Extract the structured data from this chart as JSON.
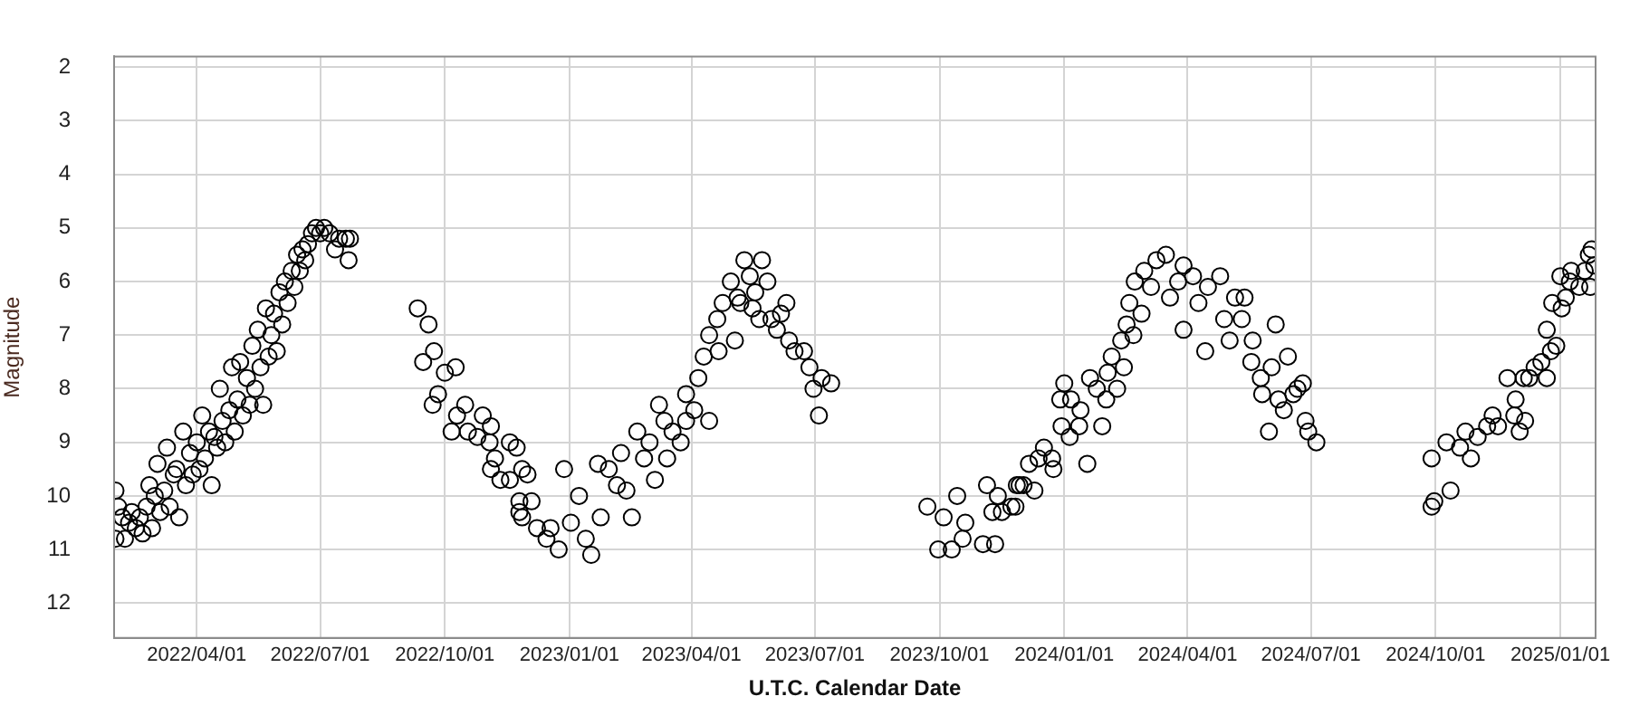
{
  "chart_data": {
    "type": "scatter",
    "xlabel": "U.T.C. Calendar Date",
    "ylabel": "Magnitude",
    "x": [
      "2022-01-31",
      "2022-01-31",
      "2022-02-02",
      "2022-02-05",
      "2022-02-07",
      "2022-02-10",
      "2022-02-12",
      "2022-02-15",
      "2022-02-18",
      "2022-02-20",
      "2022-02-23",
      "2022-02-25",
      "2022-02-27",
      "2022-03-01",
      "2022-03-03",
      "2022-03-05",
      "2022-03-08",
      "2022-03-10",
      "2022-03-12",
      "2022-03-15",
      "2022-03-17",
      "2022-03-19",
      "2022-03-22",
      "2022-03-24",
      "2022-03-27",
      "2022-03-29",
      "2022-04-01",
      "2022-04-03",
      "2022-04-05",
      "2022-04-07",
      "2022-04-10",
      "2022-04-12",
      "2022-04-14",
      "2022-04-16",
      "2022-04-18",
      "2022-04-20",
      "2022-04-22",
      "2022-04-25",
      "2022-04-27",
      "2022-04-29",
      "2022-05-01",
      "2022-05-03",
      "2022-05-05",
      "2022-05-08",
      "2022-05-10",
      "2022-05-12",
      "2022-05-14",
      "2022-05-16",
      "2022-05-18",
      "2022-05-20",
      "2022-05-22",
      "2022-05-24",
      "2022-05-26",
      "2022-05-28",
      "2022-05-30",
      "2022-06-01",
      "2022-06-03",
      "2022-06-05",
      "2022-06-07",
      "2022-06-10",
      "2022-06-12",
      "2022-06-14",
      "2022-06-16",
      "2022-06-18",
      "2022-06-20",
      "2022-06-22",
      "2022-06-25",
      "2022-06-28",
      "2022-07-01",
      "2022-07-04",
      "2022-07-08",
      "2022-07-12",
      "2022-07-15",
      "2022-07-20",
      "2022-07-22",
      "2022-07-23",
      "2022-09-11",
      "2022-09-15",
      "2022-09-19",
      "2022-09-22",
      "2022-09-23",
      "2022-09-26",
      "2022-10-01",
      "2022-10-06",
      "2022-10-09",
      "2022-10-10",
      "2022-10-16",
      "2022-10-18",
      "2022-10-25",
      "2022-10-29",
      "2022-11-03",
      "2022-11-04",
      "2022-11-04",
      "2022-11-07",
      "2022-11-11",
      "2022-11-18",
      "2022-11-18",
      "2022-11-23",
      "2022-11-25",
      "2022-11-25",
      "2022-11-27",
      "2022-11-27",
      "2022-12-01",
      "2022-12-04",
      "2022-12-08",
      "2022-12-15",
      "2022-12-18",
      "2022-12-24",
      "2022-12-28",
      "2023-01-02",
      "2023-01-08",
      "2023-01-13",
      "2023-01-17",
      "2023-01-22",
      "2023-01-24",
      "2023-01-30",
      "2023-02-05",
      "2023-02-08",
      "2023-02-12",
      "2023-02-16",
      "2023-02-20",
      "2023-02-25",
      "2023-03-01",
      "2023-03-05",
      "2023-03-08",
      "2023-03-12",
      "2023-03-14",
      "2023-03-18",
      "2023-03-24",
      "2023-03-28",
      "2023-03-28",
      "2023-04-03",
      "2023-04-06",
      "2023-04-10",
      "2023-04-14",
      "2023-04-14",
      "2023-04-20",
      "2023-04-21",
      "2023-04-24",
      "2023-04-30",
      "2023-05-03",
      "2023-05-05",
      "2023-05-07",
      "2023-05-10",
      "2023-05-14",
      "2023-05-16",
      "2023-05-18",
      "2023-05-21",
      "2023-05-23",
      "2023-05-27",
      "2023-05-30",
      "2023-06-03",
      "2023-06-06",
      "2023-06-10",
      "2023-06-12",
      "2023-06-16",
      "2023-06-23",
      "2023-06-27",
      "2023-06-30",
      "2023-07-04",
      "2023-07-06",
      "2023-07-13",
      "2023-09-22",
      "2023-09-30",
      "2023-10-04",
      "2023-10-10",
      "2023-10-14",
      "2023-10-18",
      "2023-10-20",
      "2023-11-02",
      "2023-11-05",
      "2023-11-09",
      "2023-11-11",
      "2023-11-13",
      "2023-11-16",
      "2023-11-23",
      "2023-11-26",
      "2023-11-27",
      "2023-11-29",
      "2023-12-02",
      "2023-12-06",
      "2023-12-10",
      "2023-12-13",
      "2023-12-17",
      "2023-12-23",
      "2023-12-24",
      "2023-12-29",
      "2023-12-30",
      "2024-01-01",
      "2024-01-05",
      "2024-01-06",
      "2024-01-12",
      "2024-01-13",
      "2024-01-18",
      "2024-01-20",
      "2024-01-25",
      "2024-01-29",
      "2024-02-01",
      "2024-02-02",
      "2024-02-05",
      "2024-02-09",
      "2024-02-12",
      "2024-02-14",
      "2024-02-16",
      "2024-02-18",
      "2024-02-21",
      "2024-02-22",
      "2024-02-27",
      "2024-02-29",
      "2024-03-05",
      "2024-03-09",
      "2024-03-16",
      "2024-03-19",
      "2024-03-25",
      "2024-03-29",
      "2024-03-29",
      "2024-04-05",
      "2024-04-09",
      "2024-04-14",
      "2024-04-16",
      "2024-04-25",
      "2024-04-28",
      "2024-05-02",
      "2024-05-06",
      "2024-05-11",
      "2024-05-13",
      "2024-05-18",
      "2024-05-19",
      "2024-05-25",
      "2024-05-26",
      "2024-05-31",
      "2024-06-02",
      "2024-06-05",
      "2024-06-07",
      "2024-06-11",
      "2024-06-14",
      "2024-06-18",
      "2024-06-21",
      "2024-06-25",
      "2024-06-27",
      "2024-06-29",
      "2024-07-05",
      "2024-09-28",
      "2024-09-28",
      "2024-09-30",
      "2024-10-09",
      "2024-10-12",
      "2024-10-19",
      "2024-10-23",
      "2024-10-27",
      "2024-11-01",
      "2024-11-08",
      "2024-11-12",
      "2024-11-16",
      "2024-11-23",
      "2024-11-28",
      "2024-11-29",
      "2024-12-02",
      "2024-12-05",
      "2024-12-06",
      "2024-12-09",
      "2024-12-13",
      "2024-12-18",
      "2024-12-22",
      "2024-12-22",
      "2024-12-25",
      "2024-12-26",
      "2024-12-29",
      "2025-01-01",
      "2025-01-02",
      "2025-01-05",
      "2025-01-08",
      "2025-01-09",
      "2025-01-15",
      "2025-01-19",
      "2025-01-22",
      "2025-01-23",
      "2025-01-24",
      "2025-01-26"
    ],
    "values": [
      9.9,
      10.8,
      10.2,
      10.4,
      10.8,
      10.5,
      10.3,
      10.6,
      10.4,
      10.7,
      10.2,
      9.8,
      10.6,
      10.0,
      9.4,
      10.3,
      9.9,
      9.1,
      10.2,
      9.6,
      9.5,
      10.4,
      8.8,
      9.8,
      9.2,
      9.6,
      9.0,
      9.5,
      8.5,
      9.3,
      8.8,
      9.8,
      8.9,
      9.1,
      8.0,
      8.6,
      9.0,
      8.4,
      7.6,
      8.8,
      8.2,
      7.5,
      8.5,
      7.8,
      8.3,
      7.2,
      8.0,
      6.9,
      7.6,
      8.3,
      6.5,
      7.4,
      7.0,
      6.6,
      7.3,
      6.2,
      6.8,
      6.0,
      6.4,
      5.8,
      6.1,
      5.5,
      5.8,
      5.4,
      5.6,
      5.3,
      5.1,
      5.0,
      5.1,
      5.0,
      5.1,
      5.4,
      5.2,
      5.2,
      5.6,
      5.2,
      6.5,
      7.5,
      6.8,
      8.3,
      7.3,
      8.1,
      7.7,
      8.8,
      7.6,
      8.5,
      8.3,
      8.8,
      8.9,
      8.5,
      9.0,
      8.7,
      9.5,
      9.3,
      9.7,
      9.0,
      9.7,
      9.1,
      10.1,
      10.3,
      10.4,
      9.5,
      9.6,
      10.1,
      10.6,
      10.8,
      10.6,
      11.0,
      9.5,
      10.5,
      10.0,
      10.8,
      11.1,
      9.4,
      10.4,
      9.5,
      9.8,
      9.2,
      9.9,
      10.4,
      8.8,
      9.3,
      9.0,
      9.7,
      8.3,
      8.6,
      9.3,
      8.8,
      9.0,
      8.6,
      8.1,
      8.4,
      7.8,
      7.4,
      7.0,
      8.6,
      6.7,
      7.3,
      6.4,
      6.0,
      7.1,
      6.3,
      6.4,
      5.6,
      5.9,
      6.5,
      6.2,
      6.7,
      5.6,
      6.0,
      6.7,
      6.9,
      6.6,
      6.4,
      7.1,
      7.3,
      7.3,
      7.6,
      8.0,
      8.5,
      7.8,
      7.9,
      10.2,
      11.0,
      10.4,
      11.0,
      10.0,
      10.8,
      10.5,
      10.9,
      9.8,
      10.3,
      10.9,
      10.0,
      10.3,
      10.2,
      10.2,
      9.8,
      9.8,
      9.8,
      9.4,
      9.9,
      9.3,
      9.1,
      9.3,
      9.5,
      8.2,
      8.7,
      7.9,
      8.9,
      8.2,
      8.7,
      8.4,
      9.4,
      7.8,
      8.0,
      8.7,
      8.2,
      7.7,
      7.4,
      8.0,
      7.1,
      7.6,
      6.8,
      6.4,
      7.0,
      6.0,
      6.6,
      5.8,
      6.1,
      5.6,
      5.5,
      6.3,
      6.0,
      5.7,
      6.9,
      5.9,
      6.4,
      7.3,
      6.1,
      5.9,
      6.7,
      7.1,
      6.3,
      6.7,
      6.3,
      7.5,
      7.1,
      7.8,
      8.1,
      8.8,
      7.6,
      6.8,
      8.2,
      8.4,
      7.4,
      8.1,
      8.0,
      7.9,
      8.6,
      8.8,
      9.0,
      9.3,
      10.2,
      10.1,
      9.0,
      9.9,
      9.1,
      8.8,
      9.3,
      8.9,
      8.7,
      8.5,
      8.7,
      7.8,
      8.5,
      8.2,
      8.8,
      7.8,
      8.6,
      7.8,
      7.6,
      7.5,
      7.8,
      6.9,
      7.3,
      6.4,
      7.2,
      5.9,
      6.5,
      6.3,
      6.0,
      5.8,
      6.1,
      5.8,
      5.5,
      6.1,
      5.4,
      5.7
    ],
    "color": "#000000",
    "marker": "circle",
    "xlim": [
      "2022-01-30",
      "2025-01-27"
    ],
    "xticks": [
      {
        "value": "2022-04-01",
        "label": "2022/04/01"
      },
      {
        "value": "2022-07-01",
        "label": "2022/07/01"
      },
      {
        "value": "2022-10-01",
        "label": "2022/10/01"
      },
      {
        "value": "2023-01-01",
        "label": "2023/01/01"
      },
      {
        "value": "2023-04-01",
        "label": "2023/04/01"
      },
      {
        "value": "2023-07-01",
        "label": "2023/07/01"
      },
      {
        "value": "2023-10-01",
        "label": "2023/10/01"
      },
      {
        "value": "2024-01-01",
        "label": "2024/01/01"
      },
      {
        "value": "2024-04-01",
        "label": "2024/04/01"
      },
      {
        "value": "2024-07-01",
        "label": "2024/07/01"
      },
      {
        "value": "2024-10-01",
        "label": "2024/10/01"
      },
      {
        "value": "2025-01-01",
        "label": "2025/01/01"
      }
    ],
    "ylim": [
      12.65,
      1.8
    ],
    "yticks": [
      2,
      3,
      4,
      5,
      6,
      7,
      8,
      9,
      10,
      11,
      12
    ],
    "grid": true
  }
}
